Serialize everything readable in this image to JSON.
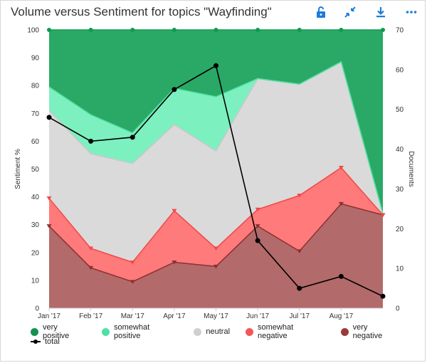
{
  "header": {
    "title": "Volume versus Sentiment for topics \"Wayfinding\"",
    "icons": [
      "unlock-icon",
      "collapse-icon",
      "download-icon",
      "more-icon"
    ]
  },
  "colors": {
    "very_positive": "#2aa866",
    "somewhat_positive": "#7df0c0",
    "neutral": "#dadada",
    "somewhat_negative": "#ff7a7a",
    "very_negative": "#b36a6a",
    "total": "#000000",
    "accent": "#1e7bd8"
  },
  "chart_data": {
    "type": "area",
    "categories": [
      "Jan '17",
      "Feb '17",
      "Mar '17",
      "Apr '17",
      "May '17",
      "Jun '17",
      "Jul '17",
      "Aug '17",
      ""
    ],
    "ylabel": "Sentiment %",
    "y2label": "Documents",
    "ylim": [
      0,
      100
    ],
    "y2lim": [
      0,
      70
    ],
    "yticks": [
      "0",
      "10",
      "20",
      "30",
      "40",
      "50",
      "60",
      "70",
      "80",
      "90",
      "100"
    ],
    "y2ticks": [
      "0",
      "10",
      "20",
      "30",
      "40",
      "50",
      "60",
      "70"
    ],
    "grid": false,
    "legend_position": "bottom",
    "stacked": true,
    "series": [
      {
        "name": "very negative",
        "values": [
          29.5,
          14.5,
          9.5,
          16.5,
          15,
          29.5,
          20.5,
          37.5,
          33.5
        ]
      },
      {
        "name": "somewhat negative",
        "values": [
          10,
          7,
          7,
          18.5,
          6.5,
          6,
          20,
          13,
          0
        ]
      },
      {
        "name": "neutral",
        "values": [
          31.5,
          34,
          35.5,
          31,
          35,
          47,
          40,
          38,
          0.5
        ]
      },
      {
        "name": "somewhat positive",
        "values": [
          8.5,
          14,
          11,
          13,
          19.5,
          0,
          0,
          0,
          0
        ]
      },
      {
        "name": "very positive",
        "values": [
          20.5,
          30.5,
          37,
          21,
          24,
          17.5,
          19.5,
          11.5,
          66
        ]
      }
    ],
    "line_series": {
      "name": "total",
      "axis": "right",
      "values": [
        48,
        42,
        43,
        55,
        61,
        17,
        5,
        8,
        3
      ]
    }
  }
}
